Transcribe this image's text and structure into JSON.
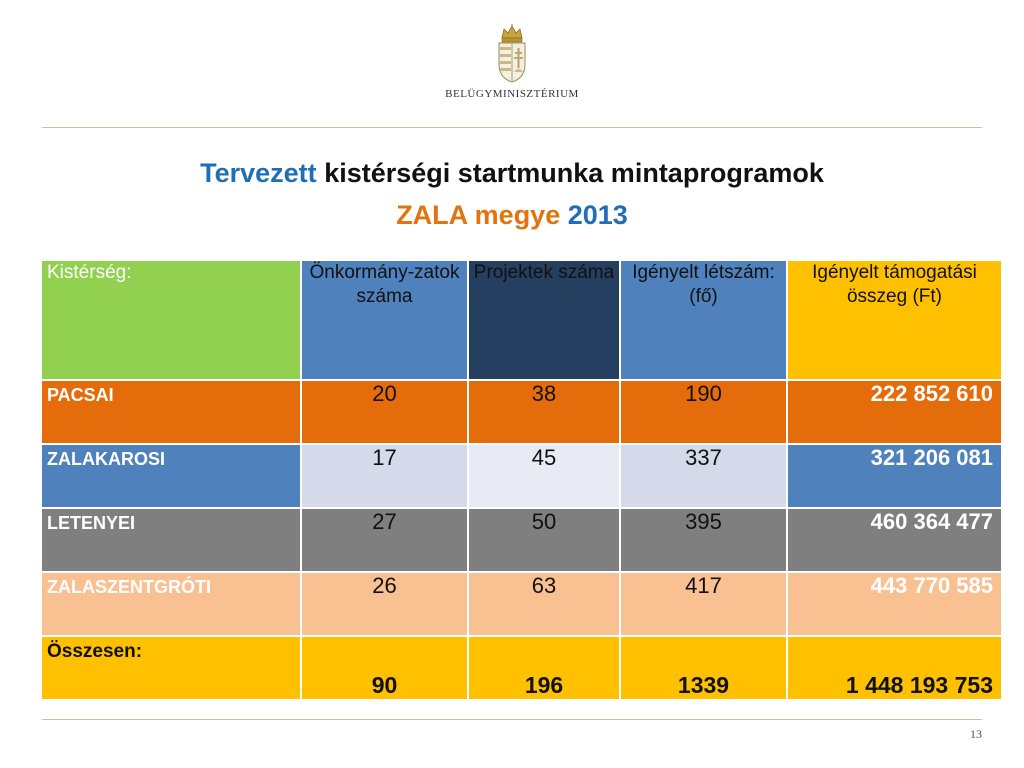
{
  "header": {
    "ministry_name": "BELÜGYMINISZTÉRIUM"
  },
  "title": {
    "line1_part1": "Tervezett",
    "line1_part2": "kistérségi startmunka mintaprogramok",
    "line2_part1": "ZALA megye",
    "line2_part2": "2013"
  },
  "colors": {
    "green_header": "#92d050",
    "blue_header": "#4f81bd",
    "navy_header": "#243f60",
    "gold": "#ffc000",
    "orange": "#e46c0a",
    "gray": "#7f7f7f",
    "peach": "#f9c091",
    "light_blue": "#d4dae9",
    "pale_blue": "#e8ebf4"
  },
  "table": {
    "headers": [
      "Kistérség:",
      "Önkormány-zatok száma",
      "Projektek száma",
      "Igényelt létszám: (fő)",
      "Igényelt támogatási összeg (Ft)"
    ],
    "rows": [
      {
        "name": "PACSAI",
        "onkormanyzat": "20",
        "projekt": "38",
        "letszam": "190",
        "osszeg": "222 852 610"
      },
      {
        "name": "ZALAKAROSI",
        "onkormanyzat": "17",
        "projekt": "45",
        "letszam": "337",
        "osszeg": "321 206 081"
      },
      {
        "name": "LETENYEI",
        "onkormanyzat": "27",
        "projekt": "50",
        "letszam": "395",
        "osszeg": "460 364 477"
      },
      {
        "name": "ZALASZENTGRÓTI",
        "onkormanyzat": "26",
        "projekt": "63",
        "letszam": "417",
        "osszeg": "443 770 585"
      }
    ],
    "total": {
      "name": "Összesen:",
      "onkormanyzat": "90",
      "projekt": "196",
      "letszam": "1339",
      "osszeg": "1 448 193 753"
    }
  },
  "footer": {
    "page_number": "13"
  }
}
